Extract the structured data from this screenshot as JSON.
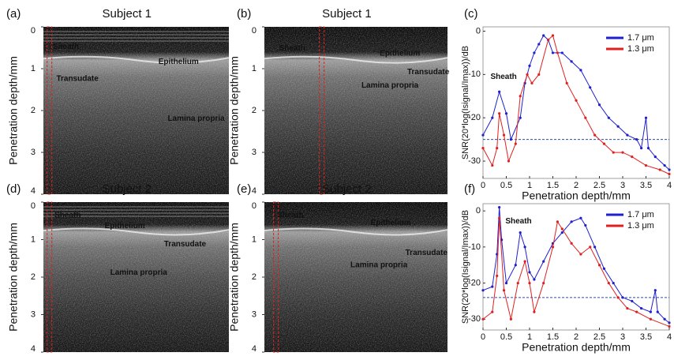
{
  "chart_data": [
    {
      "type": "image",
      "panel": "(a)",
      "title": "Subject  1",
      "ylabel": "Penetration depth/mm",
      "ylim": [
        0,
        4
      ],
      "yticks": [
        0,
        1,
        2,
        3,
        4
      ],
      "annotations": [
        {
          "text": "Sheath",
          "color": "#2fb34a"
        },
        {
          "text": "Epithelium",
          "color": "#f2f200"
        },
        {
          "text": "Transudate",
          "color": "#f2f200"
        },
        {
          "text": "Lamina propria",
          "color": "#f2f200"
        }
      ]
    },
    {
      "type": "image",
      "panel": "(b)",
      "title": "Subject  1",
      "ylabel": "Penetration depth/mm",
      "ylim": [
        0,
        4
      ],
      "yticks": [
        0,
        1,
        2,
        3,
        4
      ],
      "annotations": [
        {
          "text": "Sheath",
          "color": "#2fb34a"
        },
        {
          "text": "Epithelium",
          "color": "#f2f200"
        },
        {
          "text": "Transudate",
          "color": "#f2f200"
        },
        {
          "text": "Lamina propria",
          "color": "#f2f200"
        }
      ]
    },
    {
      "type": "line",
      "panel": "(c)",
      "xlabel": "Penetration depth/mm",
      "ylabel": "SNR(20*log(Isignal/Imax))/dB",
      "xlim": [
        0,
        4
      ],
      "xticks": [
        0,
        0.5,
        1,
        1.5,
        2,
        2.5,
        3,
        3.5,
        4
      ],
      "ylim": [
        -34,
        1
      ],
      "yticks": [
        -30,
        -20,
        -10,
        0
      ],
      "hline": -25,
      "hline_color": "#2a4ea0",
      "legend": "upper right",
      "annotations": [
        {
          "text": "Sheath",
          "color": "#2fb34a"
        }
      ],
      "series": [
        {
          "name": "1.7 μm",
          "color": "#1f1fd0",
          "x": [
            0,
            0.2,
            0.35,
            0.5,
            0.6,
            0.8,
            0.9,
            1.0,
            1.1,
            1.2,
            1.3,
            1.4,
            1.5,
            1.7,
            1.9,
            2.1,
            2.3,
            2.5,
            2.7,
            2.9,
            3.1,
            3.3,
            3.4,
            3.5,
            3.55,
            3.7,
            3.9,
            4.0
          ],
          "values": [
            -24,
            -20,
            -14,
            -19,
            -25,
            -20,
            -12,
            -8,
            -5,
            -3,
            -1,
            -2,
            -5,
            -5,
            -7,
            -9,
            -13,
            -17,
            -20,
            -22,
            -24,
            -25,
            -27,
            -20,
            -27,
            -29,
            -31,
            -32
          ]
        },
        {
          "name": "1.3 μm",
          "color": "#e02020",
          "x": [
            0,
            0.2,
            0.3,
            0.35,
            0.45,
            0.55,
            0.7,
            0.8,
            0.95,
            1.05,
            1.2,
            1.4,
            1.5,
            1.6,
            1.8,
            2.0,
            2.2,
            2.4,
            2.6,
            2.8,
            3.0,
            3.2,
            3.5,
            3.8,
            4.0
          ],
          "values": [
            -27,
            -31,
            -27,
            -19,
            -24,
            -30,
            -26,
            -15,
            -10,
            -12,
            -10,
            -2,
            -1,
            -5,
            -12,
            -16,
            -20,
            -24,
            -26,
            -28,
            -28,
            -29,
            -31,
            -32,
            -33
          ]
        }
      ]
    },
    {
      "type": "image",
      "panel": "(d)",
      "title": "Subject  2",
      "ylabel": "Penetration depth/mm",
      "ylim": [
        0,
        4
      ],
      "yticks": [
        0,
        1,
        2,
        3,
        4
      ],
      "annotations": [
        {
          "text": "Sheath",
          "color": "#2fb34a"
        },
        {
          "text": "Epithelium",
          "color": "#f2f200"
        },
        {
          "text": "Transudate",
          "color": "#f2f200"
        },
        {
          "text": "Lamina propria",
          "color": "#f2f200"
        }
      ]
    },
    {
      "type": "image",
      "panel": "(e)",
      "title": "Subject  2",
      "ylabel": "Penetration depth/mm",
      "ylim": [
        0,
        4
      ],
      "yticks": [
        0,
        1,
        2,
        3,
        4
      ],
      "annotations": [
        {
          "text": "Sheath",
          "color": "#2fb34a"
        },
        {
          "text": "Epithelium",
          "color": "#f2f200"
        },
        {
          "text": "Transudate",
          "color": "#f2f200"
        },
        {
          "text": "Lamina propria",
          "color": "#f2f200"
        }
      ]
    },
    {
      "type": "line",
      "panel": "(f)",
      "xlabel": "Penetration depth/mm",
      "ylabel": "SNR(20*log(Isignal/Imax))/dB",
      "xlim": [
        0,
        4
      ],
      "xticks": [
        0,
        0.5,
        1,
        1.5,
        2,
        2.5,
        3,
        3.5,
        4
      ],
      "ylim": [
        -33,
        2
      ],
      "yticks": [
        -30,
        -20,
        -10,
        0
      ],
      "hline": -24,
      "hline_color": "#2a4ea0",
      "legend": "upper right",
      "annotations": [
        {
          "text": "Sheath",
          "color": "#2fb34a"
        }
      ],
      "series": [
        {
          "name": "1.7 μm",
          "color": "#1f1fd0",
          "x": [
            0,
            0.2,
            0.3,
            0.35,
            0.4,
            0.5,
            0.7,
            0.8,
            0.9,
            1.0,
            1.1,
            1.3,
            1.5,
            1.7,
            1.9,
            2.1,
            2.2,
            2.4,
            2.6,
            2.8,
            3.0,
            3.2,
            3.4,
            3.6,
            3.7,
            3.75,
            3.9,
            4.0
          ],
          "values": [
            -22,
            -21,
            -12,
            1,
            -8,
            -20,
            -15,
            -6,
            -10,
            -17,
            -19,
            -14,
            -9,
            -6,
            -3,
            -2,
            -4,
            -10,
            -16,
            -20,
            -24,
            -25,
            -27,
            -28,
            -22,
            -28,
            -30,
            -31
          ]
        },
        {
          "name": "1.3 μm",
          "color": "#e02020",
          "x": [
            0,
            0.2,
            0.3,
            0.35,
            0.45,
            0.6,
            0.75,
            0.9,
            1.0,
            1.1,
            1.3,
            1.5,
            1.6,
            1.7,
            1.9,
            2.1,
            2.3,
            2.5,
            2.7,
            2.9,
            3.1,
            3.3,
            3.6,
            4.0
          ],
          "values": [
            -30,
            -28,
            -18,
            -2,
            -22,
            -30,
            -20,
            -14,
            -20,
            -28,
            -20,
            -10,
            -3,
            -5,
            -9,
            -12,
            -10,
            -15,
            -20,
            -24,
            -27,
            -28,
            -30,
            -32
          ]
        }
      ]
    }
  ]
}
